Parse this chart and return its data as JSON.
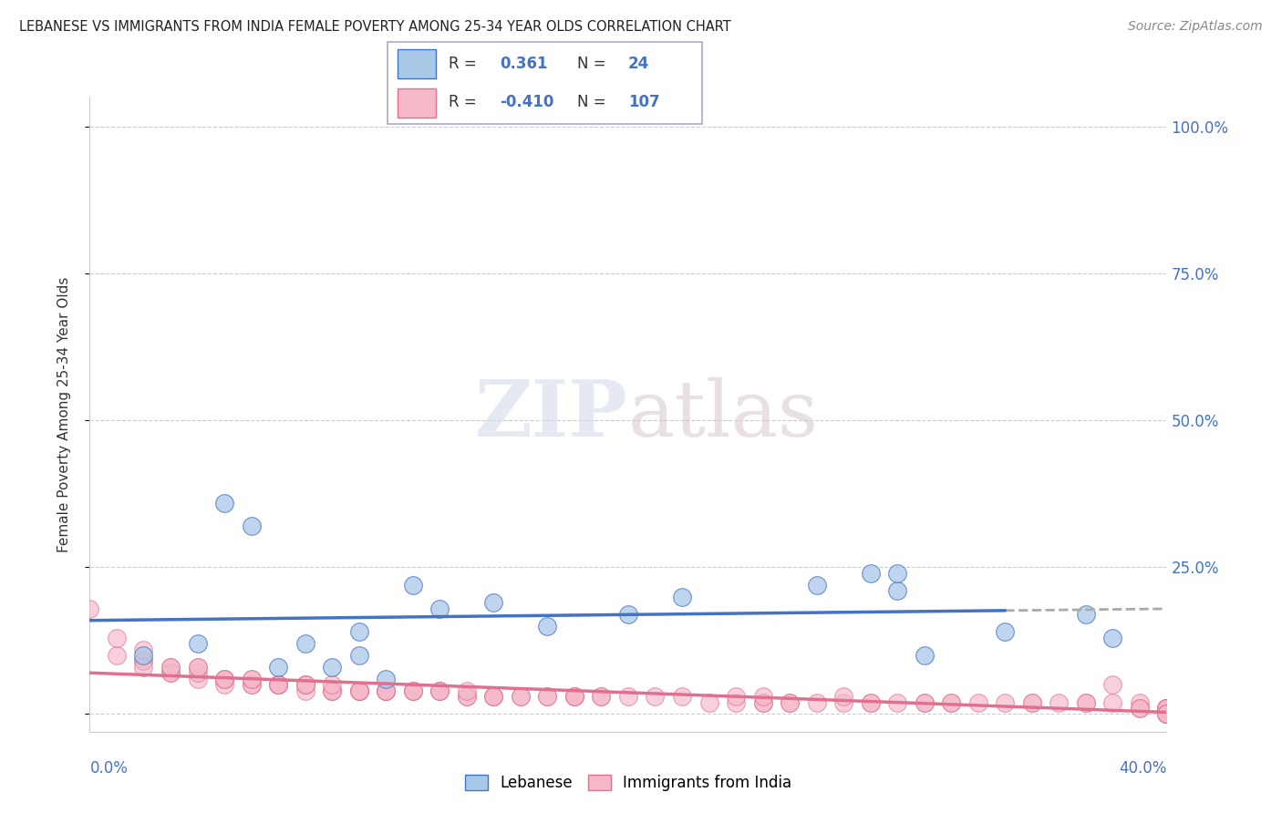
{
  "title": "LEBANESE VS IMMIGRANTS FROM INDIA FEMALE POVERTY AMONG 25-34 YEAR OLDS CORRELATION CHART",
  "source": "Source: ZipAtlas.com",
  "ylabel": "Female Poverty Among 25-34 Year Olds",
  "xlim": [
    0.0,
    0.4
  ],
  "ylim": [
    -3.0,
    105.0
  ],
  "yticks": [
    0.0,
    25.0,
    50.0,
    75.0,
    100.0
  ],
  "ytick_labels": [
    "",
    "25.0%",
    "50.0%",
    "75.0%",
    "100.0%"
  ],
  "legend_r_blue": "0.361",
  "legend_n_blue": "24",
  "legend_r_pink": "-0.410",
  "legend_n_pink": "107",
  "blue_fill_color": "#a8c8e8",
  "blue_edge_color": "#4472C4",
  "pink_fill_color": "#f4b8c8",
  "pink_edge_color": "#e07090",
  "blue_line_color": "#4472C4",
  "pink_line_color": "#e07090",
  "dashed_line_color": "#aaaaaa",
  "watermark_text": "ZIPatlas",
  "grid_color": "#cccccc",
  "blue_scatter_x": [
    0.02,
    0.04,
    0.05,
    0.06,
    0.07,
    0.08,
    0.09,
    0.1,
    0.1,
    0.11,
    0.12,
    0.13,
    0.15,
    0.17,
    0.2,
    0.22,
    0.27,
    0.29,
    0.3,
    0.3,
    0.31,
    0.34,
    0.37,
    0.38
  ],
  "blue_scatter_y": [
    10.0,
    12.0,
    36.0,
    32.0,
    8.0,
    12.0,
    8.0,
    14.0,
    10.0,
    6.0,
    22.0,
    18.0,
    19.0,
    15.0,
    17.0,
    20.0,
    22.0,
    24.0,
    21.0,
    24.0,
    10.0,
    14.0,
    17.0,
    13.0
  ],
  "pink_scatter_x": [
    0.0,
    0.01,
    0.01,
    0.02,
    0.02,
    0.02,
    0.02,
    0.03,
    0.03,
    0.03,
    0.03,
    0.04,
    0.04,
    0.04,
    0.04,
    0.05,
    0.05,
    0.05,
    0.05,
    0.06,
    0.06,
    0.06,
    0.06,
    0.07,
    0.07,
    0.07,
    0.07,
    0.08,
    0.08,
    0.08,
    0.08,
    0.09,
    0.09,
    0.09,
    0.09,
    0.1,
    0.1,
    0.1,
    0.1,
    0.11,
    0.11,
    0.11,
    0.11,
    0.12,
    0.12,
    0.12,
    0.13,
    0.13,
    0.13,
    0.14,
    0.14,
    0.14,
    0.15,
    0.15,
    0.15,
    0.16,
    0.16,
    0.17,
    0.17,
    0.18,
    0.18,
    0.18,
    0.19,
    0.19,
    0.2,
    0.21,
    0.22,
    0.23,
    0.24,
    0.24,
    0.25,
    0.25,
    0.25,
    0.26,
    0.26,
    0.27,
    0.28,
    0.28,
    0.29,
    0.29,
    0.3,
    0.31,
    0.31,
    0.32,
    0.32,
    0.33,
    0.34,
    0.35,
    0.35,
    0.36,
    0.37,
    0.37,
    0.38,
    0.38,
    0.39,
    0.39,
    0.39,
    0.4,
    0.4,
    0.4,
    0.4,
    0.4,
    0.4,
    0.4,
    0.4,
    0.4,
    0.4
  ],
  "pink_scatter_y": [
    18.0,
    10.0,
    13.0,
    9.0,
    9.0,
    8.0,
    11.0,
    7.0,
    7.0,
    8.0,
    8.0,
    6.0,
    7.0,
    8.0,
    8.0,
    5.0,
    6.0,
    6.0,
    6.0,
    5.0,
    5.0,
    6.0,
    6.0,
    5.0,
    5.0,
    5.0,
    5.0,
    4.0,
    5.0,
    5.0,
    5.0,
    4.0,
    4.0,
    4.0,
    5.0,
    4.0,
    4.0,
    4.0,
    4.0,
    4.0,
    4.0,
    4.0,
    4.0,
    4.0,
    4.0,
    4.0,
    4.0,
    4.0,
    4.0,
    3.0,
    3.0,
    4.0,
    3.0,
    3.0,
    3.0,
    3.0,
    3.0,
    3.0,
    3.0,
    3.0,
    3.0,
    3.0,
    3.0,
    3.0,
    3.0,
    3.0,
    3.0,
    2.0,
    2.0,
    3.0,
    2.0,
    2.0,
    3.0,
    2.0,
    2.0,
    2.0,
    2.0,
    3.0,
    2.0,
    2.0,
    2.0,
    2.0,
    2.0,
    2.0,
    2.0,
    2.0,
    2.0,
    2.0,
    2.0,
    2.0,
    2.0,
    2.0,
    5.0,
    2.0,
    2.0,
    1.0,
    1.0,
    1.0,
    1.0,
    0.0,
    1.0,
    1.0,
    1.0,
    1.0,
    0.0,
    0.0,
    0.0
  ]
}
